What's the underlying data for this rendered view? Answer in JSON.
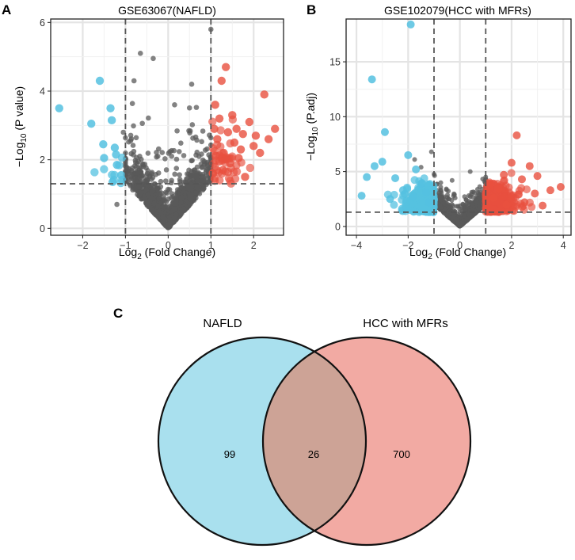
{
  "panels": {
    "a": "A",
    "b": "B",
    "c": "C"
  },
  "colors": {
    "up": "#e8503f",
    "down": "#55c1e0",
    "ns": "#5a5a5a",
    "dashed": "#555555",
    "venn_left": "#a9e0ee",
    "venn_right": "#f2aaa3",
    "venn_overlap": "#cda396"
  },
  "chart_data": [
    {
      "type": "scatter",
      "panel": "A",
      "title": "GSE63067(NAFLD)",
      "xlabel": {
        "base": "Log",
        "sub": "2",
        "rest": " (Fold Change)"
      },
      "ylabel": {
        "pre": "−Log",
        "sub": "10",
        "rest": " (P value)"
      },
      "xlim": [
        -2.75,
        2.7
      ],
      "ylim": [
        -0.2,
        6.1
      ],
      "xticks": [
        -2,
        -1,
        0,
        1,
        2
      ],
      "yticks": [
        0,
        2,
        4,
        6
      ],
      "fc_threshold": [
        -1,
        1
      ],
      "p_threshold": 1.3,
      "down_points": [
        [
          -2.55,
          3.5
        ],
        [
          -1.8,
          3.05
        ],
        [
          -1.6,
          4.3
        ],
        [
          -1.52,
          2.45
        ],
        [
          -1.5,
          2.05
        ],
        [
          -1.35,
          3.5
        ],
        [
          -1.32,
          3.15
        ],
        [
          -1.25,
          2.35
        ],
        [
          -1.22,
          2.15
        ],
        [
          -1.2,
          1.85
        ],
        [
          -1.3,
          1.35
        ],
        [
          -1.1,
          1.55
        ]
      ],
      "up_points": [
        [
          1.05,
          1.6
        ],
        [
          1.1,
          3.6
        ],
        [
          1.2,
          3.2
        ],
        [
          1.25,
          4.3
        ],
        [
          1.35,
          4.7
        ],
        [
          1.5,
          3.3
        ],
        [
          1.6,
          2.9
        ],
        [
          1.7,
          2.3
        ],
        [
          1.8,
          1.5
        ],
        [
          1.9,
          3.1
        ],
        [
          2.05,
          2.7
        ],
        [
          2.15,
          2.2
        ],
        [
          2.25,
          3.9
        ],
        [
          2.35,
          2.6
        ],
        [
          2.5,
          2.9
        ],
        [
          1.3,
          2.2
        ],
        [
          1.45,
          1.9
        ],
        [
          1.55,
          2.5
        ],
        [
          1.4,
          2.8
        ],
        [
          1.15,
          2.6
        ],
        [
          1.65,
          2.05
        ],
        [
          1.75,
          2.75
        ],
        [
          2.0,
          2.4
        ],
        [
          1.2,
          1.95
        ],
        [
          1.08,
          2.9
        ],
        [
          1.28,
          1.7
        ]
      ],
      "ns_seed": 11,
      "ns_extra": [
        [
          1.0,
          5.8
        ],
        [
          -0.65,
          5.1
        ],
        [
          -0.35,
          4.95
        ],
        [
          0.55,
          4.2
        ],
        [
          -0.8,
          4.3
        ],
        [
          0.15,
          3.6
        ],
        [
          -1.05,
          2.8
        ],
        [
          -1.2,
          0.7
        ]
      ]
    },
    {
      "type": "scatter",
      "panel": "B",
      "title": "GSE102079(HCC with MFRs)",
      "xlabel": {
        "base": "Log",
        "sub": "2",
        "rest": " (Fold Change)"
      },
      "ylabel": {
        "pre": "−Log",
        "sub": "10",
        "rest": " (P.adj)"
      },
      "xlim": [
        -4.4,
        4.3
      ],
      "ylim": [
        -0.8,
        18.9
      ],
      "xticks": [
        -4,
        -2,
        0,
        2,
        4
      ],
      "yticks": [
        0,
        5,
        10,
        15
      ],
      "fc_threshold": [
        -1,
        1
      ],
      "p_threshold": 1.3,
      "down_points": [
        [
          -1.9,
          18.4
        ],
        [
          -3.4,
          13.4
        ],
        [
          -2.9,
          8.6
        ],
        [
          -3.6,
          4.5
        ],
        [
          -3.3,
          5.5
        ],
        [
          -3.0,
          5.9
        ],
        [
          -2.5,
          4.4
        ],
        [
          -2.0,
          6.5
        ],
        [
          -1.7,
          5.2
        ],
        [
          -1.5,
          3.9
        ],
        [
          -1.3,
          3.1
        ],
        [
          -3.8,
          2.8
        ],
        [
          -2.7,
          2.5
        ],
        [
          -2.2,
          3.3
        ],
        [
          -1.8,
          2.7
        ],
        [
          -1.2,
          2.2
        ]
      ],
      "up_points": [
        [
          2.2,
          8.3
        ],
        [
          3.9,
          3.6
        ],
        [
          3.5,
          3.3
        ],
        [
          3.2,
          1.9
        ],
        [
          3.0,
          4.6
        ],
        [
          2.7,
          5.5
        ],
        [
          2.4,
          4.3
        ],
        [
          2.0,
          5.8
        ],
        [
          1.7,
          4.7
        ],
        [
          1.5,
          3.5
        ],
        [
          1.3,
          2.6
        ],
        [
          2.9,
          3.0
        ],
        [
          2.5,
          2.2
        ],
        [
          1.8,
          2.0
        ],
        [
          1.2,
          3.9
        ]
      ],
      "ns_seed": 23,
      "ns_extra": [
        [
          -1.75,
          6.1
        ],
        [
          -1.5,
          5.4
        ],
        [
          0.4,
          5.0
        ],
        [
          -0.3,
          4.2
        ],
        [
          1.0,
          4.5
        ],
        [
          -1.1,
          6.8
        ]
      ]
    },
    {
      "type": "venn",
      "panel": "C",
      "sets": [
        {
          "label": "NAFLD",
          "only": 99
        },
        {
          "label": "HCC with MFRs",
          "only": 700
        }
      ],
      "intersection": 26
    }
  ]
}
